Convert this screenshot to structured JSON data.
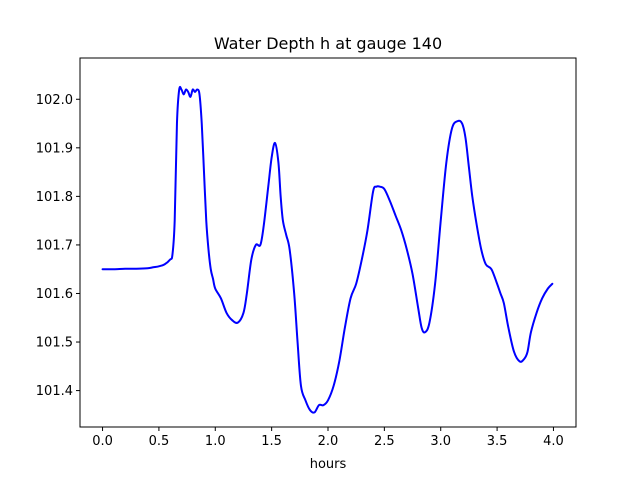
{
  "chart_data": {
    "type": "line",
    "title": "Water Depth h at gauge 140",
    "xlabel": "hours",
    "ylabel": "",
    "xlim": [
      -0.2,
      4.2
    ],
    "ylim": [
      101.325,
      102.085
    ],
    "xticks": [
      0.0,
      0.5,
      1.0,
      1.5,
      2.0,
      2.5,
      3.0,
      3.5,
      4.0
    ],
    "xtick_labels": [
      "0.0",
      "0.5",
      "1.0",
      "1.5",
      "2.0",
      "2.5",
      "3.0",
      "3.5",
      "4.0"
    ],
    "yticks": [
      101.4,
      101.5,
      101.6,
      101.7,
      101.8,
      101.9,
      102.0
    ],
    "ytick_labels": [
      "101.4",
      "101.5",
      "101.6",
      "101.7",
      "101.8",
      "101.9",
      "102.0"
    ],
    "grid": false,
    "series": [
      {
        "color": "#0000ff",
        "x": [
          0.0,
          0.1,
          0.2,
          0.3,
          0.4,
          0.45,
          0.5,
          0.55,
          0.6,
          0.62,
          0.64,
          0.66,
          0.68,
          0.7,
          0.72,
          0.74,
          0.76,
          0.78,
          0.8,
          0.82,
          0.84,
          0.86,
          0.88,
          0.9,
          0.92,
          0.94,
          0.96,
          0.98,
          1.0,
          1.05,
          1.1,
          1.15,
          1.2,
          1.25,
          1.28,
          1.32,
          1.36,
          1.4,
          1.43,
          1.47,
          1.5,
          1.53,
          1.56,
          1.58,
          1.6,
          1.63,
          1.66,
          1.7,
          1.73,
          1.76,
          1.8,
          1.84,
          1.88,
          1.92,
          1.96,
          2.0,
          2.05,
          2.1,
          2.15,
          2.2,
          2.25,
          2.3,
          2.35,
          2.4,
          2.43,
          2.46,
          2.5,
          2.55,
          2.6,
          2.65,
          2.7,
          2.75,
          2.8,
          2.83,
          2.86,
          2.9,
          2.95,
          3.0,
          3.05,
          3.1,
          3.15,
          3.19,
          3.22,
          3.25,
          3.28,
          3.32,
          3.36,
          3.4,
          3.45,
          3.5,
          3.53,
          3.56,
          3.6,
          3.65,
          3.7,
          3.74,
          3.77,
          3.8,
          3.85,
          3.9,
          3.95,
          3.99
        ],
        "y": [
          101.65,
          101.65,
          101.651,
          101.651,
          101.652,
          101.654,
          101.656,
          101.66,
          101.67,
          101.68,
          101.75,
          101.95,
          102.02,
          102.02,
          102.01,
          102.02,
          102.015,
          102.005,
          102.02,
          102.015,
          102.02,
          102.01,
          101.95,
          101.85,
          101.75,
          101.69,
          101.65,
          101.63,
          101.61,
          101.59,
          101.56,
          101.545,
          101.54,
          101.56,
          101.6,
          101.67,
          101.7,
          101.7,
          101.74,
          101.82,
          101.88,
          101.91,
          101.87,
          101.8,
          101.75,
          101.72,
          101.69,
          101.6,
          101.5,
          101.41,
          101.38,
          101.36,
          101.355,
          101.37,
          101.37,
          101.38,
          101.41,
          101.46,
          101.53,
          101.59,
          101.62,
          101.67,
          101.73,
          101.81,
          101.82,
          101.82,
          101.815,
          101.79,
          101.76,
          101.73,
          101.69,
          101.64,
          101.57,
          101.53,
          101.52,
          101.54,
          101.62,
          101.75,
          101.87,
          101.94,
          101.955,
          101.95,
          101.92,
          101.86,
          101.8,
          101.74,
          101.69,
          101.66,
          101.65,
          101.62,
          101.6,
          101.58,
          101.53,
          101.48,
          101.46,
          101.465,
          101.48,
          101.52,
          101.56,
          101.59,
          101.61,
          101.62
        ]
      }
    ]
  }
}
